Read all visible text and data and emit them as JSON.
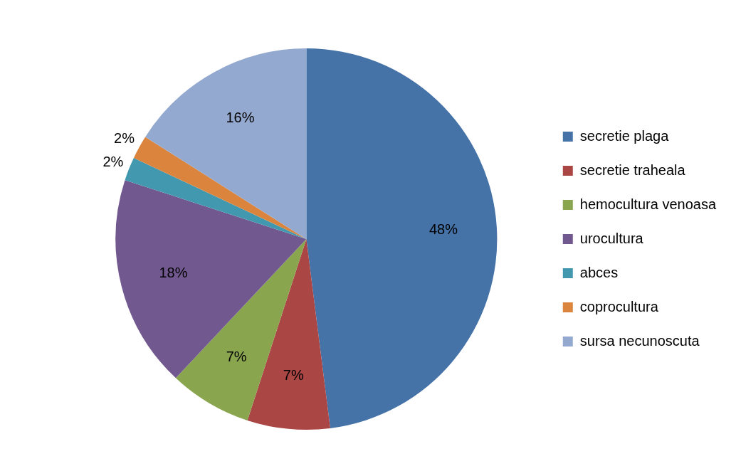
{
  "chart_data": {
    "type": "pie",
    "categories": [
      "secretie plaga",
      "secretie traheala",
      "hemocultura venoasa",
      "urocultura",
      "abces",
      "coprocultura",
      "sursa necunoscuta"
    ],
    "values": [
      48,
      7,
      7,
      18,
      2,
      2,
      16
    ],
    "colors": [
      "#4572a7",
      "#aa4643",
      "#89a54e",
      "#71588f",
      "#4198af",
      "#db843d",
      "#93a9cf"
    ],
    "value_labels": [
      "48%",
      "7%",
      "7%",
      "18%",
      "2%",
      "2%",
      "16%"
    ],
    "legend": "right"
  }
}
